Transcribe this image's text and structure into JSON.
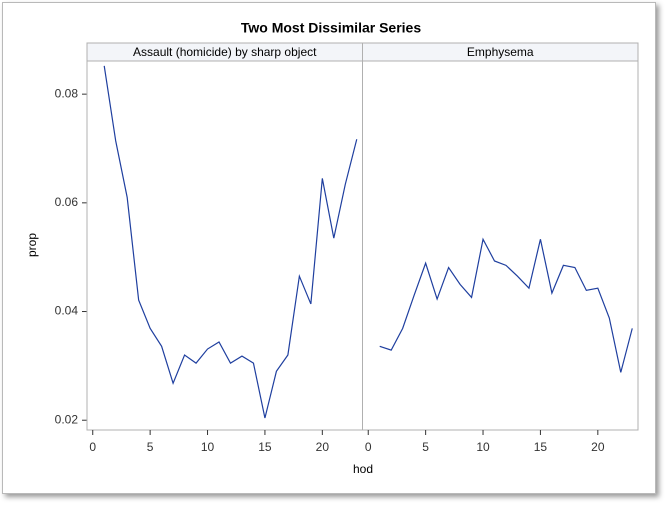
{
  "chart_data": {
    "type": "line",
    "title": "Two Most Dissimilar Series",
    "xlabel": "hod",
    "ylabel": "prop",
    "ylim": [
      0.0182,
      0.0861
    ],
    "yticks": [
      0.02,
      0.04,
      0.06,
      0.08
    ],
    "xlim": [
      -0.5,
      23.5
    ],
    "xticks": [
      0,
      5,
      10,
      15,
      20
    ],
    "color": "#1f3f9f",
    "panels": [
      {
        "name": "Assault (homicide) by sharp object",
        "x": [
          1,
          2,
          3,
          4,
          5,
          6,
          7,
          8,
          9,
          10,
          11,
          12,
          13,
          14,
          15,
          16,
          17,
          18,
          19,
          20,
          21,
          22,
          23
        ],
        "values": [
          0.0852,
          0.0714,
          0.061,
          0.0421,
          0.0369,
          0.0336,
          0.0268,
          0.032,
          0.0305,
          0.0331,
          0.0344,
          0.0305,
          0.0318,
          0.0305,
          0.0204,
          0.029,
          0.032,
          0.0465,
          0.0414,
          0.0645,
          0.0535,
          0.0634,
          0.0717
        ]
      },
      {
        "name": "Emphysema",
        "x": [
          1,
          2,
          3,
          4,
          5,
          6,
          7,
          8,
          9,
          10,
          11,
          12,
          13,
          14,
          15,
          16,
          17,
          18,
          19,
          20,
          21,
          22,
          23
        ],
        "values": [
          0.0336,
          0.0329,
          0.0369,
          0.043,
          0.0489,
          0.0423,
          0.0481,
          0.045,
          0.0426,
          0.0533,
          0.0493,
          0.0485,
          0.0465,
          0.0443,
          0.0533,
          0.0434,
          0.0485,
          0.0481,
          0.0439,
          0.0443,
          0.0388,
          0.0288,
          0.0369
        ]
      }
    ]
  }
}
